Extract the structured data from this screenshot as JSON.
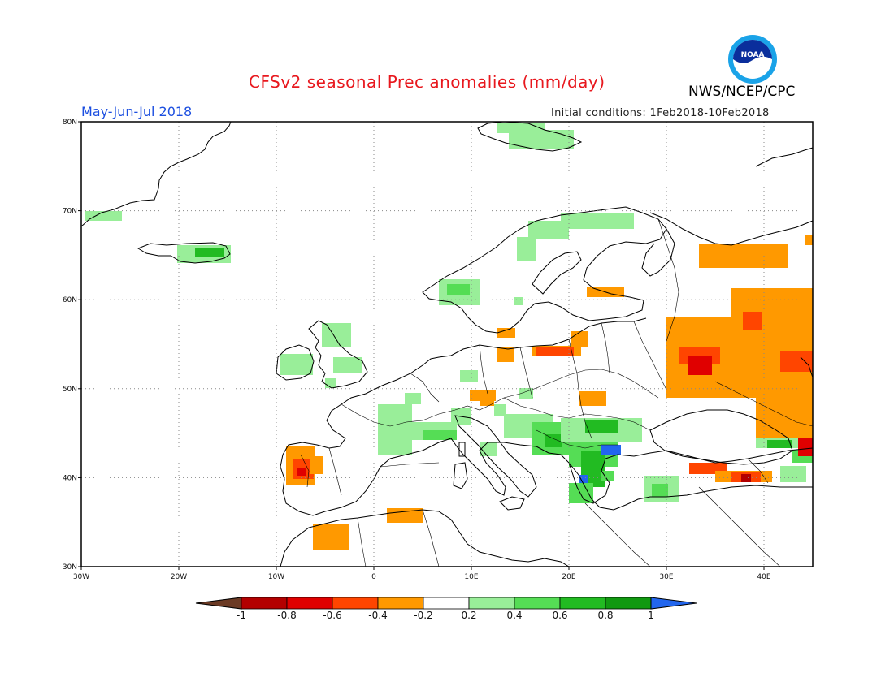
{
  "title": "CFSv2 seasonal Prec anomalies (mm/day)",
  "season": "May-Jun-Jul 2018",
  "initial_conditions": "Initial conditions: 1Feb2018-10Feb2018",
  "organization": "NWS/NCEP/CPC",
  "logo_text": "NOAA",
  "map": {
    "lon_range": [
      -30,
      45
    ],
    "lat_range": [
      30,
      80
    ],
    "lon_ticks": [
      "30W",
      "20W",
      "10W",
      "0",
      "10E",
      "20E",
      "30E",
      "40E"
    ],
    "lat_ticks": [
      "80N",
      "70N",
      "60N",
      "50N",
      "40N",
      "30N"
    ]
  },
  "colorbar": {
    "labels": [
      "-1",
      "-0.8",
      "-0.6",
      "-0.4",
      "-0.2",
      "0.2",
      "0.4",
      "0.6",
      "0.8",
      "1"
    ],
    "colors": [
      "#6b3a24",
      "#b30000",
      "#e00000",
      "#ff4500",
      "#ff9900",
      "#ffffff",
      "#99ee99",
      "#55dd55",
      "#22bb22",
      "#119911",
      "#2266ee"
    ]
  },
  "anomaly_colors": {
    "neg_02_04": "#ff9900",
    "neg_04_06": "#ff4500",
    "neg_06_08": "#e00000",
    "neg_08_10": "#b30000",
    "pos_02_04": "#99ee99",
    "pos_04_06": "#55dd55",
    "pos_06_08": "#22bb22",
    "pos_08_10": "#119911",
    "pos_gt_10": "#2266ee"
  }
}
